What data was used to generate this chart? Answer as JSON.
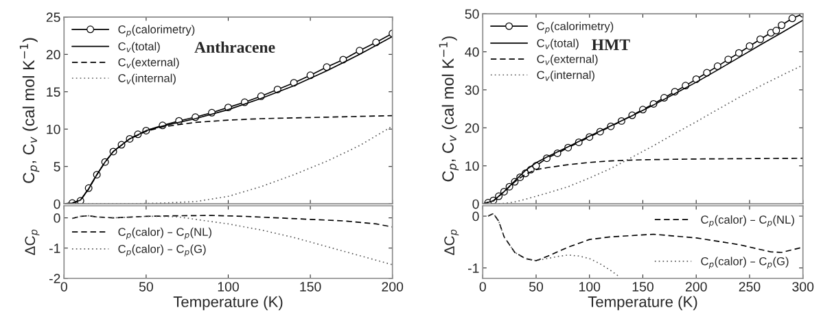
{
  "chart_data": [
    {
      "type": "line",
      "title": "Anthracene",
      "ylabel": "C$_{p}$, C$_{v}$ (cal mol K$^{−1}$)",
      "xlim": [
        0,
        200
      ],
      "xticks": [
        0,
        50,
        100,
        150,
        200
      ],
      "ylim": [
        0,
        25
      ],
      "yticks": [
        0,
        5,
        10,
        15,
        20,
        25
      ],
      "tick_labels": "y",
      "grid": false,
      "legend": "top left",
      "series": [
        {
          "name": "C$_{p}$(calorimetry)",
          "color": "#000000",
          "marker": "circle",
          "line_style": "solid",
          "x": [
            5,
            10,
            15,
            20,
            25,
            30,
            35,
            40,
            45,
            50,
            60,
            70,
            80,
            90,
            100,
            110,
            120,
            130,
            140,
            150,
            160,
            170,
            180,
            190,
            200
          ],
          "values": [
            0.1,
            0.4,
            2.1,
            3.9,
            5.6,
            7.0,
            7.9,
            8.7,
            9.3,
            9.8,
            10.5,
            11.1,
            11.6,
            12.2,
            12.9,
            13.6,
            14.4,
            15.3,
            16.2,
            17.2,
            18.3,
            19.3,
            20.5,
            21.6,
            22.8
          ]
        },
        {
          "name": "C$_{v}$(total)",
          "color": "#000000",
          "marker": "none",
          "line_style": "solid",
          "x": [
            0,
            5,
            10,
            15,
            20,
            25,
            30,
            40,
            50,
            60,
            80,
            100,
            120,
            140,
            160,
            180,
            200
          ],
          "values": [
            0,
            0.1,
            0.5,
            2.0,
            3.9,
            5.6,
            7.0,
            8.7,
            9.8,
            10.4,
            11.4,
            12.6,
            14.1,
            15.8,
            17.8,
            20.0,
            22.4
          ]
        },
        {
          "name": "C$_{v}$(external)",
          "color": "#000000",
          "marker": "none",
          "line_style": "dashed",
          "x": [
            0,
            5,
            10,
            15,
            20,
            25,
            30,
            40,
            50,
            60,
            80,
            100,
            120,
            140,
            160,
            180,
            200
          ],
          "values": [
            0,
            0.1,
            0.5,
            2.0,
            3.9,
            5.6,
            7.0,
            8.7,
            9.7,
            10.3,
            10.9,
            11.2,
            11.4,
            11.5,
            11.6,
            11.7,
            11.8
          ]
        },
        {
          "name": "C$_{v}$(internal)",
          "color": "#555555",
          "marker": "none",
          "line_style": "dotted",
          "x": [
            0,
            40,
            60,
            80,
            100,
            120,
            140,
            160,
            180,
            200
          ],
          "values": [
            0,
            0,
            0.1,
            0.3,
            1.0,
            2.3,
            3.9,
            5.7,
            7.8,
            10.4
          ]
        }
      ]
    },
    {
      "type": "line",
      "xlabel": "Temperature (K)",
      "ylabel": "ΔC$_{p}$",
      "xlim": [
        0,
        200
      ],
      "xticks": [
        0,
        50,
        100,
        150,
        200
      ],
      "ylim": [
        -2,
        0.4
      ],
      "yticks": [
        -2,
        -1,
        0
      ],
      "grid": false,
      "legend": "left",
      "series": [
        {
          "name": "C$_{p}$(calor) – C$_{p}$(NL)",
          "color": "#000000",
          "marker": "none",
          "line_style": "dashed",
          "x": [
            5,
            10,
            15,
            20,
            30,
            50,
            70,
            90,
            110,
            130,
            150,
            170,
            190,
            200
          ],
          "values": [
            -0.02,
            0.05,
            0.07,
            0.03,
            0.0,
            0.05,
            0.07,
            0.08,
            0.05,
            0.0,
            -0.05,
            -0.1,
            -0.2,
            -0.3
          ]
        },
        {
          "name": "C$_{p}$(calor) – C$_{p}$(G)",
          "color": "#555555",
          "marker": "none",
          "line_style": "dotted",
          "x": [
            5,
            10,
            15,
            20,
            30,
            50,
            60,
            70,
            80,
            100,
            120,
            140,
            160,
            180,
            200
          ],
          "values": [
            -0.02,
            0.05,
            0.07,
            0.03,
            0.0,
            0.05,
            0.05,
            0.03,
            -0.05,
            -0.2,
            -0.4,
            -0.65,
            -0.95,
            -1.25,
            -1.55
          ]
        }
      ]
    },
    {
      "type": "line",
      "title": "HMT",
      "ylabel": "C$_{p}$, C$_{v}$ (cal mol K$^{−1}$)",
      "xlim": [
        0,
        300
      ],
      "xticks": [
        0,
        50,
        100,
        150,
        200,
        250,
        300
      ],
      "ylim": [
        0,
        50
      ],
      "yticks": [
        0,
        10,
        20,
        30,
        40,
        50
      ],
      "tick_labels": "y",
      "grid": false,
      "legend": "top left",
      "series": [
        {
          "name": "C$_{p}$(calorimetry)",
          "color": "#000000",
          "marker": "circle",
          "line_style": "solid",
          "x": [
            5,
            10,
            15,
            20,
            25,
            30,
            35,
            40,
            45,
            50,
            60,
            70,
            80,
            90,
            100,
            110,
            120,
            130,
            140,
            150,
            160,
            170,
            180,
            190,
            200,
            210,
            220,
            230,
            240,
            250,
            260,
            270,
            275,
            280,
            290,
            300
          ],
          "values": [
            0.3,
            0.9,
            2.0,
            3.2,
            4.5,
            5.8,
            7.0,
            8.0,
            9.0,
            10.0,
            12.0,
            13.3,
            14.8,
            16.2,
            17.6,
            19.0,
            20.4,
            21.8,
            23.3,
            24.8,
            26.3,
            27.9,
            29.5,
            31.1,
            32.8,
            34.5,
            36.2,
            38.0,
            39.7,
            41.5,
            43.3,
            45.0,
            45.6,
            47.0,
            48.8,
            50.0
          ]
        },
        {
          "name": "C$_{v}$(total)",
          "color": "#000000",
          "marker": "none",
          "line_style": "solid",
          "x": [
            0,
            10,
            20,
            30,
            40,
            50,
            60,
            80,
            100,
            120,
            140,
            160,
            180,
            200,
            220,
            240,
            260,
            280,
            300
          ],
          "values": [
            0,
            0.8,
            3.2,
            6.0,
            8.8,
            10.8,
            12.3,
            15.0,
            17.8,
            20.5,
            23.2,
            26.0,
            29.0,
            32.0,
            35.2,
            38.5,
            41.8,
            45.0,
            48.3
          ]
        },
        {
          "name": "C$_{v}$(external)",
          "color": "#000000",
          "marker": "none",
          "line_style": "dashed",
          "x": [
            0,
            10,
            20,
            30,
            40,
            50,
            60,
            80,
            100,
            120,
            150,
            200,
            250,
            300
          ],
          "values": [
            0,
            0.8,
            3.2,
            5.8,
            7.8,
            9.0,
            9.5,
            10.3,
            10.9,
            11.3,
            11.6,
            11.8,
            11.9,
            12.0
          ]
        },
        {
          "name": "C$_{v}$(internal)",
          "color": "#555555",
          "marker": "none",
          "line_style": "dotted",
          "x": [
            0,
            20,
            30,
            40,
            60,
            80,
            100,
            120,
            140,
            160,
            180,
            200,
            220,
            240,
            260,
            280,
            300
          ],
          "values": [
            0,
            0.1,
            0.5,
            1.2,
            2.8,
            4.5,
            6.8,
            9.3,
            12.3,
            15.3,
            18.5,
            21.6,
            24.8,
            28.0,
            31.0,
            33.8,
            36.5
          ]
        }
      ]
    },
    {
      "type": "line",
      "xlabel": "Temperature (K)",
      "ylabel": "ΔC$_{p}$",
      "xlim": [
        0,
        300
      ],
      "xticks": [
        0,
        50,
        100,
        150,
        200,
        250,
        300
      ],
      "ylim": [
        -1.2,
        0.2
      ],
      "yticks": [
        -1,
        0
      ],
      "grid": false,
      "legend": "right",
      "series": [
        {
          "name": "C$_{p}$(calor) – C$_{p}$(NL)",
          "color": "#000000",
          "marker": "none",
          "line_style": "dashed",
          "x": [
            5,
            10,
            15,
            20,
            30,
            40,
            50,
            60,
            80,
            100,
            120,
            160,
            200,
            240,
            270,
            280,
            300
          ],
          "values": [
            0,
            0.05,
            -0.1,
            -0.4,
            -0.7,
            -0.82,
            -0.86,
            -0.78,
            -0.6,
            -0.45,
            -0.4,
            -0.35,
            -0.42,
            -0.55,
            -0.69,
            -0.7,
            -0.6
          ]
        },
        {
          "name": "C$_{p}$(calor) – C$_{p}$(G)",
          "color": "#555555",
          "marker": "none",
          "line_style": "dotted",
          "x": [
            5,
            10,
            15,
            20,
            30,
            40,
            50,
            60,
            70,
            80,
            90,
            100,
            110,
            120,
            128
          ],
          "values": [
            0,
            0.05,
            -0.1,
            -0.4,
            -0.7,
            -0.82,
            -0.86,
            -0.82,
            -0.78,
            -0.75,
            -0.77,
            -0.82,
            -0.92,
            -1.05,
            -1.17
          ]
        }
      ]
    }
  ]
}
